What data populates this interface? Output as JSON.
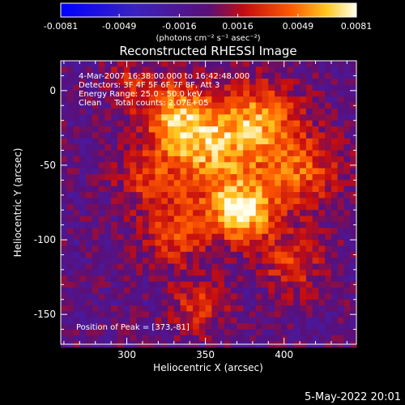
{
  "chart_data": {
    "type": "heatmap",
    "title": "Reconstructed RHESSI Image",
    "xlabel": "Heliocentric X (arcsec)",
    "ylabel": "Heliocentric Y (arcsec)",
    "xlim": [
      258,
      446
    ],
    "ylim": [
      -170,
      20
    ],
    "x_ticks": [
      300,
      350,
      400
    ],
    "y_ticks": [
      0,
      -50,
      -100,
      -150
    ],
    "colorbar": {
      "tick_labels": [
        "-0.0081",
        "-0.0049",
        "-0.0016",
        "0.0016",
        "0.0049",
        "0.0081"
      ],
      "tick_values": [
        -0.0081,
        -0.0049,
        -0.0016,
        0.0016,
        0.0049,
        0.0081
      ],
      "range": [
        -0.0081,
        0.0081
      ],
      "unit_label": "(photons cm⁻² s⁻¹ asec⁻²)"
    },
    "info_lines": [
      "4-Mar-2007 16:38:00.000 to 16:42:48.000",
      "Detectors: 3F 4F 5F 6F 7F 8F, Att 3",
      "Energy Range: 25.0 - 50.0 keV",
      "Clean     Total counts: 2.07E+05"
    ],
    "peak_position": "Position of Peak = [373,-81]",
    "sources": [
      {
        "x": 373,
        "y": -81,
        "value": 0.0081,
        "sigma": 14
      },
      {
        "x": 350,
        "y": -40,
        "value": 0.006,
        "sigma": 22
      },
      {
        "x": 385,
        "y": -20,
        "value": 0.0052,
        "sigma": 18
      },
      {
        "x": 330,
        "y": -15,
        "value": 0.0048,
        "sigma": 16
      },
      {
        "x": 410,
        "y": -55,
        "value": 0.0044,
        "sigma": 18
      },
      {
        "x": 330,
        "y": -95,
        "value": 0.004,
        "sigma": 16
      },
      {
        "x": 405,
        "y": -115,
        "value": 0.0036,
        "sigma": 15
      },
      {
        "x": 345,
        "y": -145,
        "value": 0.0034,
        "sigma": 13
      },
      {
        "x": 310,
        "y": -60,
        "value": 0.003,
        "sigma": 12
      },
      {
        "x": 300,
        "y": 5,
        "value": 0.0024,
        "sigma": 10
      }
    ],
    "background_value": -0.0005
  },
  "timestamp": "5-May-2022 20:01"
}
